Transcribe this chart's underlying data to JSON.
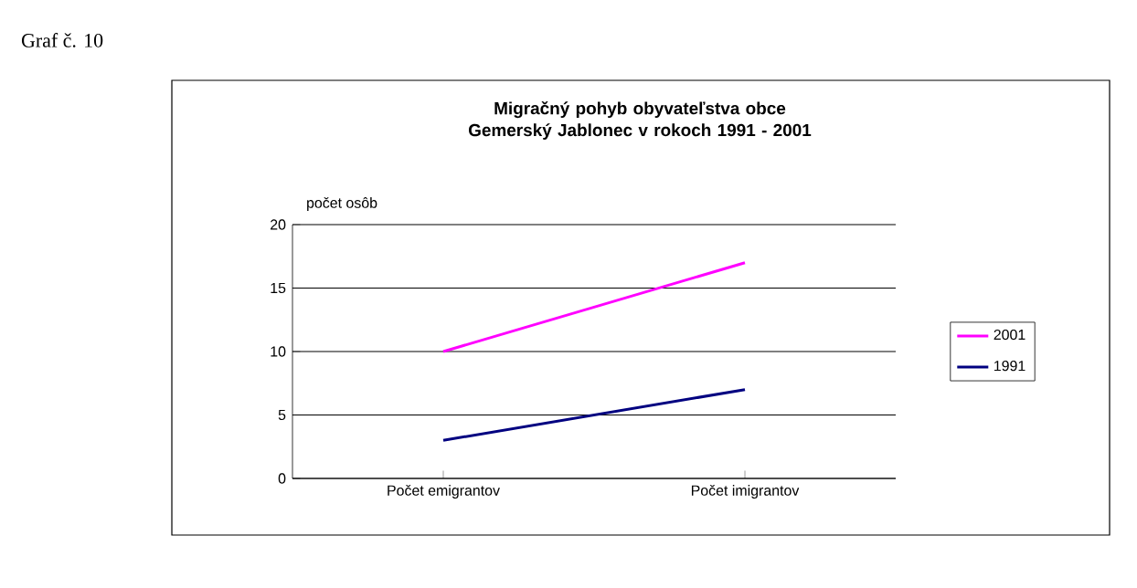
{
  "chart_data": {
    "type": "line",
    "title": "Migračný pohyb obyvateľstva obce Gemerský Jablonec v rokoch 1991 - 2001",
    "ylabel": "počet osôb",
    "annotations": [
      "Graf č. 10"
    ],
    "categories": [
      "Počet emigrantov",
      "Počet imigrantov"
    ],
    "series": [
      {
        "name": "2001",
        "color": "#ff00ff",
        "values": [
          10,
          17
        ]
      },
      {
        "name": "1991",
        "color": "#000080",
        "values": [
          3,
          7
        ]
      }
    ],
    "ylim": [
      0,
      20
    ],
    "yticks": [
      0,
      5,
      10,
      15,
      20
    ],
    "grid": "y",
    "legend": "right"
  }
}
